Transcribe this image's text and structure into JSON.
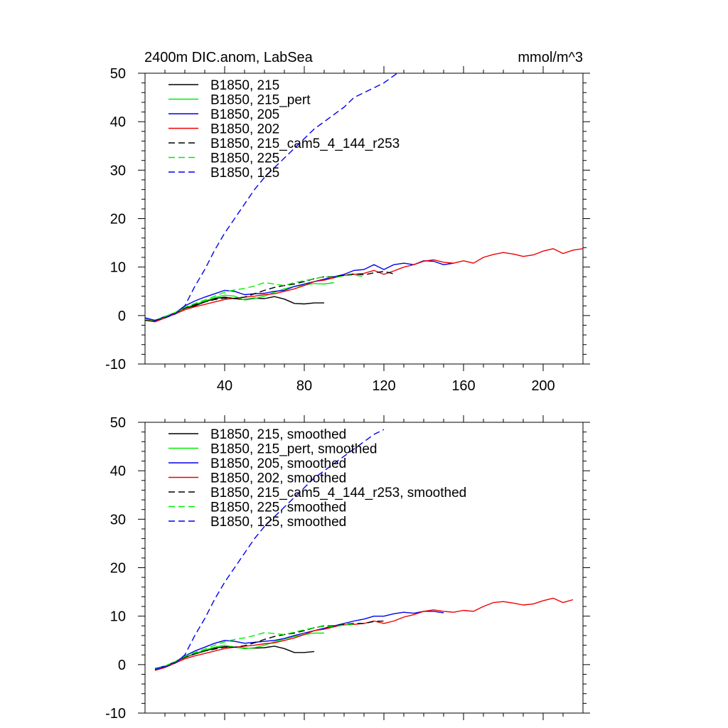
{
  "chart_data": [
    {
      "type": "line",
      "title_left": "2400m DIC.anom, LabSea",
      "title_right": "mmol/m^3",
      "xlim": [
        0,
        220
      ],
      "ylim": [
        -10,
        50
      ],
      "xticks": [
        40,
        80,
        120,
        160,
        200
      ],
      "xtick_labels": [
        "40",
        "80",
        "120",
        "160",
        "200"
      ],
      "yticks": [
        -10,
        0,
        10,
        20,
        30,
        40,
        50
      ],
      "ytick_labels": [
        "-10",
        "0",
        "10",
        "20",
        "30",
        "40",
        "50"
      ],
      "legend_position": "top-left",
      "grid": false,
      "series": [
        {
          "name": "B1850, 215",
          "color": "#000000",
          "dash": "solid",
          "x": [
            0,
            5,
            10,
            15,
            20,
            25,
            30,
            35,
            40,
            45,
            50,
            55,
            60,
            65,
            70,
            75,
            80,
            85,
            90
          ],
          "y": [
            -1,
            -1.2,
            -0.3,
            0.5,
            1.5,
            2,
            2.8,
            3.5,
            3.8,
            3.5,
            3.3,
            3.6,
            3.5,
            3.9,
            3.4,
            2.5,
            2.4,
            2.6,
            2.6
          ]
        },
        {
          "name": "B1850, 215_pert",
          "color": "#00ee00",
          "dash": "solid",
          "x": [
            0,
            5,
            10,
            15,
            20,
            25,
            30,
            35,
            40,
            45,
            50,
            55,
            60,
            65,
            70,
            75,
            80,
            85,
            90,
            95
          ],
          "y": [
            -0.8,
            -1,
            -0.3,
            0.6,
            1.6,
            2.3,
            3,
            3.7,
            4.2,
            4,
            3.2,
            3.5,
            4,
            4.8,
            5.5,
            6,
            6.3,
            6.6,
            6.5,
            6.8
          ]
        },
        {
          "name": "B1850, 205",
          "color": "#0000ee",
          "dash": "solid",
          "x": [
            0,
            5,
            10,
            15,
            20,
            25,
            30,
            35,
            40,
            45,
            50,
            55,
            60,
            65,
            70,
            75,
            80,
            85,
            90,
            95,
            100,
            105,
            110,
            115,
            120,
            125,
            130,
            135,
            140,
            145,
            150,
            155
          ],
          "y": [
            -0.5,
            -1,
            -0.2,
            0.5,
            2,
            3,
            3.8,
            4.5,
            5.2,
            5,
            4.3,
            4.5,
            4.6,
            5,
            5.2,
            6,
            6.5,
            7,
            7.5,
            8,
            8.5,
            9.3,
            9.5,
            10.5,
            9.5,
            10.5,
            10.8,
            10.5,
            11.3,
            11.2,
            10.5,
            10.8
          ]
        },
        {
          "name": "B1850, 202",
          "color": "#ee0000",
          "dash": "solid",
          "x": [
            0,
            5,
            10,
            15,
            20,
            25,
            30,
            35,
            40,
            45,
            50,
            55,
            60,
            65,
            70,
            75,
            80,
            85,
            90,
            95,
            100,
            105,
            110,
            115,
            120,
            125,
            130,
            135,
            140,
            145,
            150,
            155,
            160,
            165,
            170,
            175,
            180,
            185,
            190,
            195,
            200,
            205,
            210,
            215,
            220
          ],
          "y": [
            -1,
            -1.3,
            -0.5,
            0.3,
            1.2,
            1.8,
            2.3,
            2.8,
            3.3,
            3.6,
            3.8,
            4,
            4.3,
            4.5,
            5,
            5.5,
            6.2,
            7,
            7.3,
            7.8,
            8.3,
            8.5,
            8.7,
            9.3,
            8.5,
            9.2,
            10,
            10.5,
            11.2,
            11.5,
            11,
            10.8,
            11.3,
            10.8,
            12,
            12.6,
            13,
            12.7,
            12.2,
            12.5,
            13.3,
            13.8,
            12.8,
            13.5,
            13.8
          ]
        },
        {
          "name": "B1850, 215_cam5_4_144_r253",
          "color": "#000000",
          "dash": "dashed",
          "x": [
            0,
            5,
            10,
            15,
            20,
            25,
            30,
            35,
            40,
            45,
            50,
            55,
            60,
            65,
            70,
            75,
            80,
            85,
            90,
            95,
            100,
            105,
            110,
            115,
            120,
            125
          ],
          "y": [
            -1,
            -1,
            -0.3,
            0.5,
            1.5,
            2.2,
            2.8,
            3.3,
            3.6,
            3.5,
            3.8,
            4.5,
            5.2,
            5.8,
            6.2,
            6.5,
            7,
            7.6,
            8,
            8,
            8.3,
            8.6,
            8.4,
            8.8,
            9.1,
            8.6
          ]
        },
        {
          "name": "B1850, 225",
          "color": "#00ee00",
          "dash": "dashed",
          "x": [
            0,
            5,
            10,
            15,
            20,
            25,
            30,
            35,
            40,
            45,
            50,
            55,
            60,
            65,
            70,
            75,
            80,
            85,
            90,
            95,
            100,
            105,
            110
          ],
          "y": [
            -0.8,
            -1,
            -0.2,
            0.6,
            1.7,
            2.5,
            3.2,
            4,
            4.8,
            5.3,
            5.6,
            6.1,
            6.8,
            6.5,
            6.2,
            6.8,
            7.2,
            7.6,
            8,
            7.8,
            8.2,
            8.4,
            8
          ]
        },
        {
          "name": "B1850, 125",
          "color": "#0000ee",
          "dash": "dashed",
          "x": [
            0,
            5,
            10,
            15,
            20,
            25,
            30,
            35,
            40,
            45,
            50,
            55,
            60,
            65,
            70,
            75,
            80,
            85,
            90,
            95,
            100,
            105,
            110,
            115,
            120,
            125,
            130
          ],
          "y": [
            -0.5,
            -1,
            -0.5,
            0.3,
            2,
            6,
            9.5,
            13.5,
            17,
            20,
            23,
            26,
            28.5,
            30.5,
            32.5,
            34.5,
            36.5,
            38.5,
            40,
            41.5,
            43,
            45,
            46,
            47,
            48,
            49.5,
            51
          ]
        }
      ]
    },
    {
      "type": "line",
      "xlim": [
        0,
        220
      ],
      "ylim": [
        -10,
        50
      ],
      "xticks": [
        40,
        80,
        120,
        160,
        200
      ],
      "yticks": [
        -10,
        0,
        10,
        20,
        30,
        40,
        50
      ],
      "ytick_labels": [
        "-10",
        "0",
        "10",
        "20",
        "30",
        "40",
        "50"
      ],
      "legend_position": "top-left",
      "grid": false,
      "series": [
        {
          "name": "B1850, 215, smoothed",
          "color": "#000000",
          "dash": "solid",
          "x": [
            5,
            10,
            15,
            20,
            25,
            30,
            35,
            40,
            45,
            50,
            55,
            60,
            65,
            70,
            75,
            80,
            85
          ],
          "y": [
            -1,
            -0.5,
            0.5,
            1.5,
            2.2,
            2.8,
            3.4,
            3.7,
            3.6,
            3.4,
            3.4,
            3.5,
            3.8,
            3.3,
            2.5,
            2.5,
            2.7
          ]
        },
        {
          "name": "B1850, 215_pert, smoothed",
          "color": "#00ee00",
          "dash": "solid",
          "x": [
            5,
            10,
            15,
            20,
            25,
            30,
            35,
            40,
            45,
            50,
            55,
            60,
            65,
            70,
            75,
            80,
            85,
            90
          ],
          "y": [
            -0.8,
            -0.3,
            0.6,
            1.6,
            2.3,
            3,
            3.6,
            4,
            3.6,
            3.3,
            3.5,
            4,
            4.7,
            5.3,
            5.8,
            6.2,
            6.5,
            6.5
          ]
        },
        {
          "name": "B1850, 205, smoothed",
          "color": "#0000ee",
          "dash": "solid",
          "x": [
            5,
            10,
            15,
            20,
            25,
            30,
            35,
            40,
            45,
            50,
            55,
            60,
            65,
            70,
            75,
            80,
            85,
            90,
            95,
            100,
            105,
            110,
            115,
            120,
            125,
            130,
            135,
            140,
            145,
            150
          ],
          "y": [
            -0.8,
            -0.3,
            0.5,
            1.8,
            2.8,
            3.6,
            4.4,
            5,
            4.8,
            4.4,
            4.6,
            4.8,
            5,
            5.4,
            6,
            6.5,
            7,
            7.5,
            8,
            8.5,
            9,
            9.4,
            10,
            10,
            10.5,
            10.8,
            10.6,
            11,
            11,
            10.7
          ]
        },
        {
          "name": "B1850, 202, smoothed",
          "color": "#ee0000",
          "dash": "solid",
          "x": [
            5,
            10,
            15,
            20,
            25,
            30,
            35,
            40,
            45,
            50,
            55,
            60,
            65,
            70,
            75,
            80,
            85,
            90,
            95,
            100,
            105,
            110,
            115,
            120,
            125,
            130,
            135,
            140,
            145,
            150,
            155,
            160,
            165,
            170,
            175,
            180,
            185,
            190,
            195,
            200,
            205,
            210,
            215
          ],
          "y": [
            -1.2,
            -0.6,
            0.3,
            1.2,
            1.8,
            2.3,
            2.8,
            3.3,
            3.6,
            3.8,
            4,
            4.3,
            4.5,
            5,
            5.5,
            6.2,
            7,
            7.3,
            7.8,
            8.2,
            8.3,
            8.5,
            9,
            8.5,
            9,
            9.8,
            10.3,
            11,
            11.3,
            11,
            10.8,
            11.2,
            11,
            12,
            12.8,
            13,
            12.7,
            12.3,
            12.5,
            13.2,
            13.7,
            12.8,
            13.4
          ]
        },
        {
          "name": "B1850, 215_cam5_4_144_r253, smoothed",
          "color": "#000000",
          "dash": "dashed",
          "x": [
            5,
            10,
            15,
            20,
            25,
            30,
            35,
            40,
            45,
            50,
            55,
            60,
            65,
            70,
            75,
            80,
            85,
            90,
            95,
            100,
            105,
            110,
            115,
            120
          ],
          "y": [
            -1,
            -0.4,
            0.5,
            1.5,
            2.2,
            2.8,
            3.2,
            3.6,
            3.6,
            3.9,
            4.5,
            5.2,
            5.8,
            6.2,
            6.5,
            7,
            7.6,
            8,
            8,
            8.3,
            8.5,
            8.5,
            8.9,
            9
          ]
        },
        {
          "name": "B1850, 225, smoothed",
          "color": "#00ee00",
          "dash": "dashed",
          "x": [
            5,
            10,
            15,
            20,
            25,
            30,
            35,
            40,
            45,
            50,
            55,
            60,
            65,
            70,
            75,
            80,
            85,
            90,
            95,
            100,
            105
          ],
          "y": [
            -0.9,
            -0.3,
            0.6,
            1.7,
            2.5,
            3.2,
            4,
            4.7,
            5.2,
            5.5,
            6,
            6.6,
            6.4,
            6.2,
            6.7,
            7.2,
            7.6,
            7.9,
            7.8,
            8.2,
            8.3
          ]
        },
        {
          "name": "B1850, 125, smoothed",
          "color": "#0000ee",
          "dash": "dashed",
          "x": [
            5,
            10,
            15,
            20,
            25,
            30,
            35,
            40,
            45,
            50,
            55,
            60,
            65,
            70,
            75,
            80,
            85,
            90,
            95,
            100,
            105,
            110,
            115,
            120
          ],
          "y": [
            -1,
            -0.5,
            0.3,
            2,
            6,
            9.5,
            13.5,
            17,
            20,
            23,
            26,
            28.5,
            30.5,
            32.5,
            34.5,
            36.5,
            38.5,
            40,
            41.5,
            43,
            44.5,
            46,
            47.5,
            48.5
          ]
        }
      ]
    }
  ]
}
